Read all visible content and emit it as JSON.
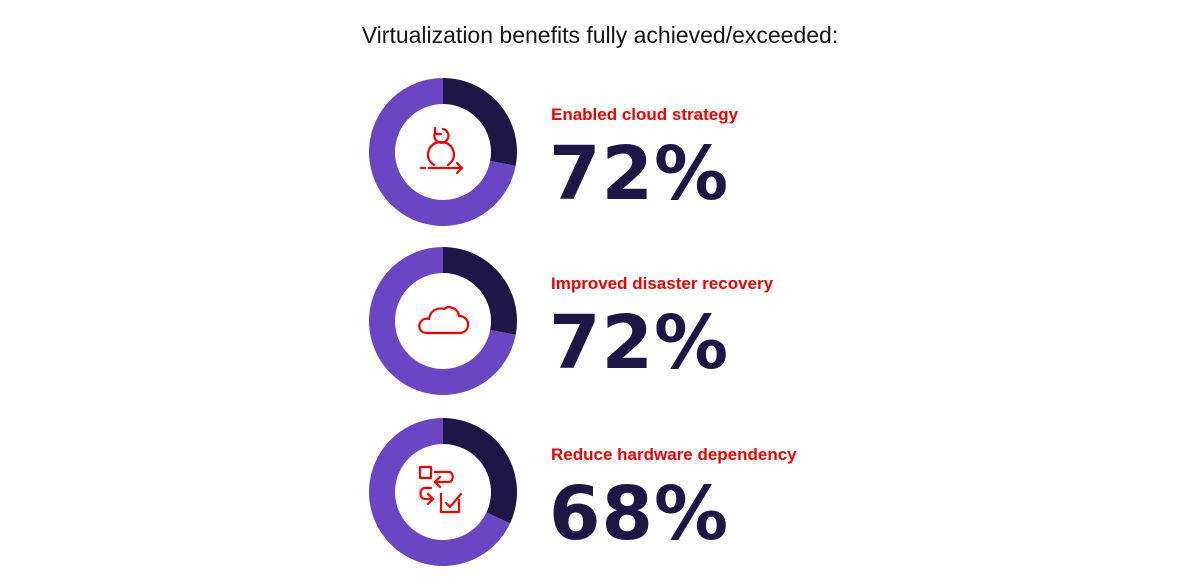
{
  "chart_data": {
    "type": "donut",
    "title": "Virtualization benefits fully achieved/exceeded:",
    "items": [
      {
        "label": "Enabled cloud strategy",
        "value": 72,
        "value_label": "72%",
        "icon": "cycle-arrow-icon"
      },
      {
        "label": "Improved disaster recovery",
        "value": 72,
        "value_label": "72%",
        "icon": "cloud-icon"
      },
      {
        "label": "Reduce hardware dependency",
        "value": 68,
        "value_label": "68%",
        "icon": "swap-check-icon"
      }
    ]
  },
  "colors": {
    "achieved": "#6a45c4",
    "remainder": "#1e1646",
    "label": "#ee0000",
    "value": "#1e1646",
    "icon": "#ee0000"
  }
}
